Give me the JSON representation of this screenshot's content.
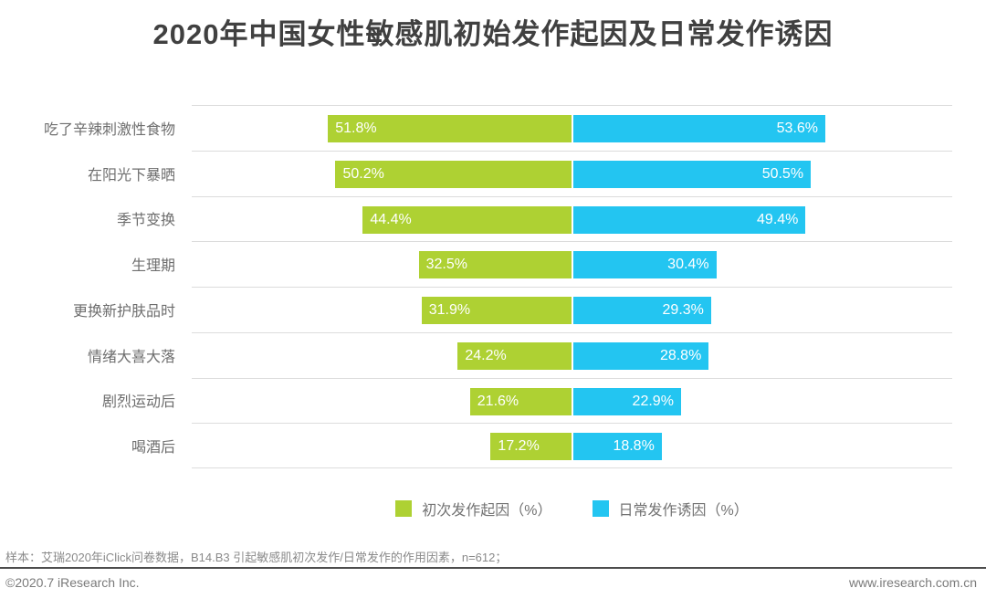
{
  "title": "2020年中国女性敏感肌初始发作起因及日常发作诱因",
  "chart_data": {
    "type": "bar",
    "orientation": "horizontal-diverging",
    "categories": [
      "吃了辛辣刺激性食物",
      "在阳光下暴晒",
      "季节变换",
      "生理期",
      "更换新护肤品时",
      "情绪大喜大落",
      "剧烈运动后",
      "喝酒后"
    ],
    "series": [
      {
        "name": "初次发作起因（%）",
        "side": "left",
        "color": "#AED133",
        "values": [
          51.8,
          50.2,
          44.4,
          32.5,
          31.9,
          24.2,
          21.6,
          17.2
        ]
      },
      {
        "name": "日常发作诱因（%）",
        "side": "right",
        "color": "#23C5F1",
        "values": [
          53.6,
          50.5,
          49.4,
          30.4,
          29.3,
          28.8,
          22.9,
          18.8
        ]
      }
    ],
    "value_suffix": "%",
    "grid": "row-dividers",
    "legend_position": "bottom-center"
  },
  "legend": {
    "items": [
      {
        "label": "初次发作起因（%）",
        "color": "#AED133"
      },
      {
        "label": "日常发作诱因（%）",
        "color": "#23C5F1"
      }
    ]
  },
  "footer": {
    "note": "样本：艾瑞2020年iClick问卷数据，B14.B3 引起敏感肌初次发作/日常发作的作用因素，n=612；",
    "copyright": "©2020.7 iResearch Inc.",
    "website": "www.iresearch.com.cn"
  }
}
